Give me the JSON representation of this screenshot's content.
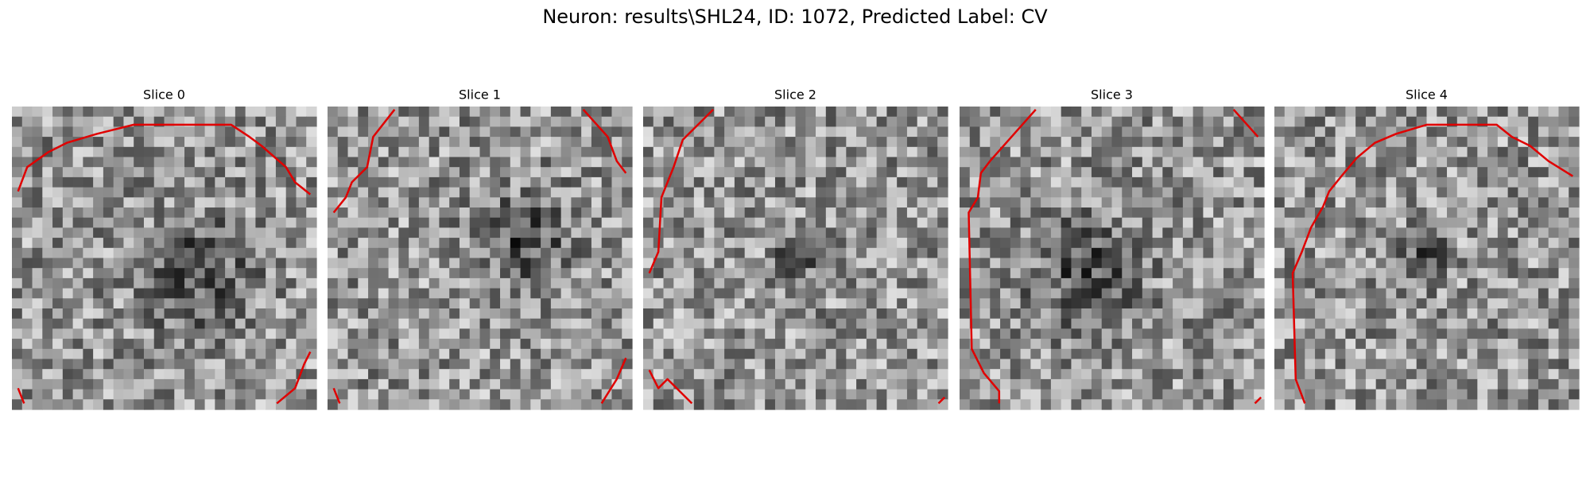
{
  "title": "Neuron: results\\SHL24, ID: 1072, Predicted Label: CV",
  "panels": [
    {
      "title": "Slice 0"
    },
    {
      "title": "Slice 1"
    },
    {
      "title": "Slice 2"
    },
    {
      "title": "Slice 3"
    },
    {
      "title": "Slice 4"
    }
  ]
}
